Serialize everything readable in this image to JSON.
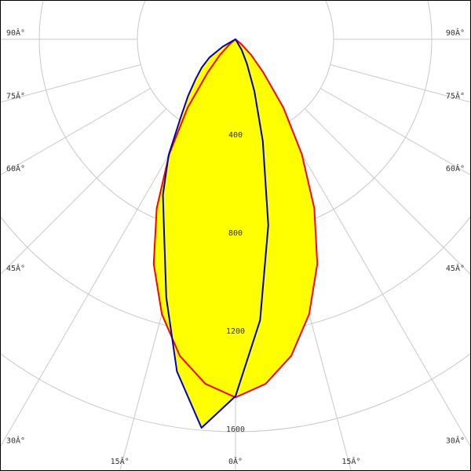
{
  "chart_data": {
    "type": "polar",
    "x": [
      -60,
      -55,
      -50,
      -45,
      -40,
      -35,
      -30,
      -25,
      -20,
      -15,
      -10,
      -5,
      0,
      5,
      10,
      15,
      20,
      25,
      30,
      35,
      40,
      45,
      50,
      55,
      60
    ],
    "series": [
      {
        "color": "#ff0000",
        "values": [
          0,
          0,
          30,
          90,
          175,
          340,
          540,
          760,
          975,
          1160,
          1310,
          1410,
          1460,
          1410,
          1310,
          1160,
          975,
          760,
          540,
          340,
          175,
          90,
          30,
          0,
          0
        ]
      },
      {
        "color": "#0000c0",
        "values": [
          60,
          130,
          180,
          230,
          300,
          390,
          545,
          700,
          850,
          1090,
          1375,
          1590,
          1455,
          1150,
          770,
          430,
          225,
          110,
          50,
          0,
          0,
          0,
          0,
          0,
          0
        ]
      }
    ],
    "fill": "#ffff00",
    "rlim": [
      0,
      1600
    ],
    "rticks": [
      400,
      800,
      1200,
      1600
    ],
    "thetaticks": [
      {
        "value": -90,
        "label": "90Â°"
      },
      {
        "value": -75,
        "label": "75Â°"
      },
      {
        "value": -60,
        "label": "60Â°"
      },
      {
        "value": -45,
        "label": "45Â°"
      },
      {
        "value": -30,
        "label": "30Â°"
      },
      {
        "value": -15,
        "label": "15Â°"
      },
      {
        "value": 0,
        "label": "0Â°"
      },
      {
        "value": 15,
        "label": "15Â°"
      },
      {
        "value": 30,
        "label": "30Â°"
      },
      {
        "value": 45,
        "label": "45Â°"
      },
      {
        "value": 60,
        "label": "60Â°"
      },
      {
        "value": 75,
        "label": "75Â°"
      },
      {
        "value": 90,
        "label": "90Â°"
      }
    ],
    "grid": true
  }
}
